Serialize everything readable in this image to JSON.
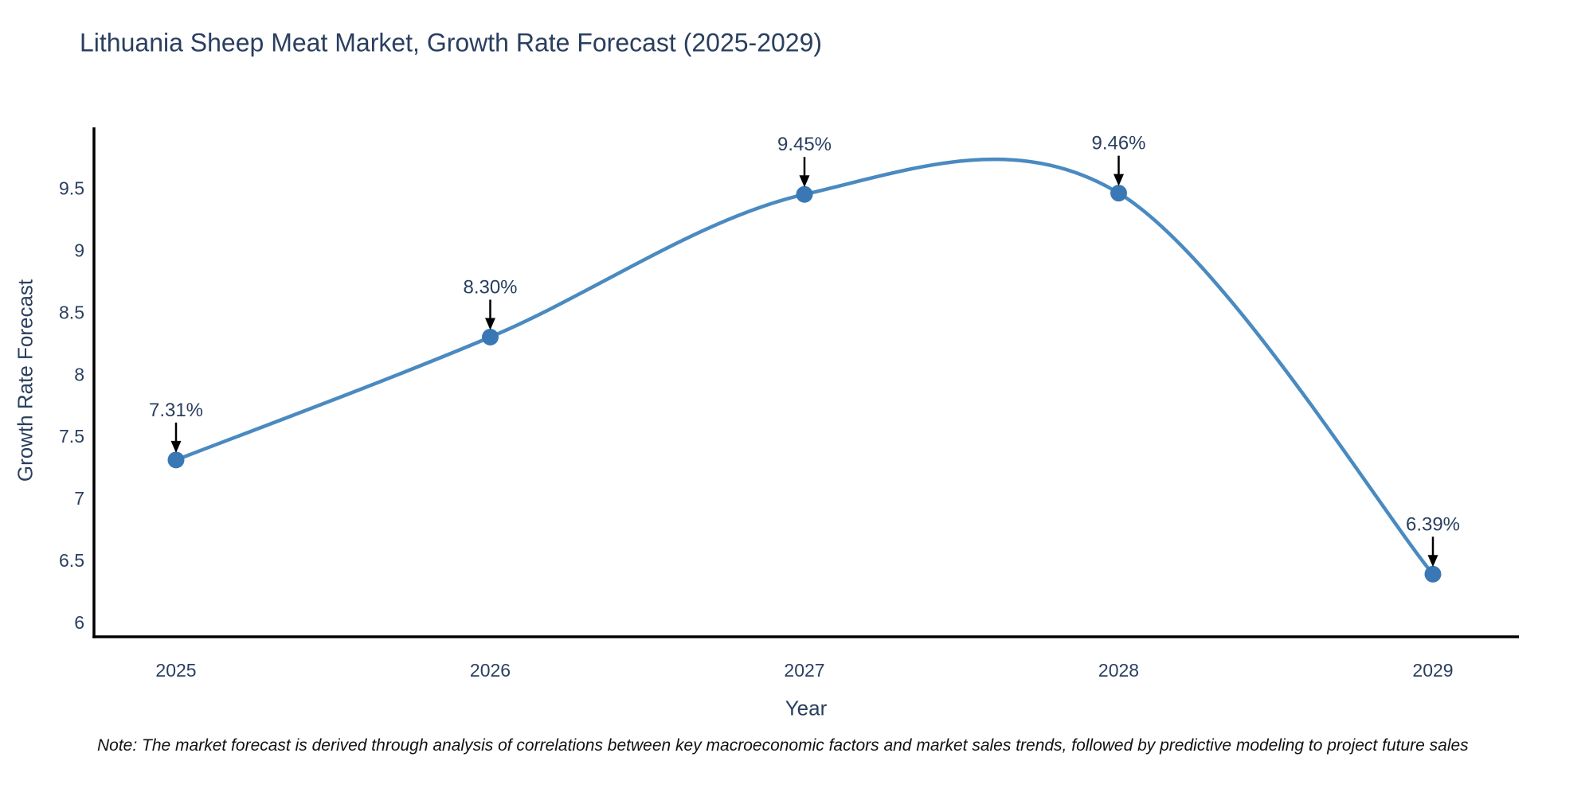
{
  "chart_data": {
    "type": "line",
    "title": "Lithuania Sheep Meat Market, Growth Rate Forecast (2025-2029)",
    "xlabel": "Year",
    "ylabel": "Growth Rate Forecast",
    "x": [
      2025,
      2026,
      2027,
      2028,
      2029
    ],
    "y": [
      7.31,
      8.3,
      9.45,
      9.46,
      6.39
    ],
    "point_labels": [
      "7.31%",
      "8.30%",
      "9.45%",
      "9.46%",
      "6.39%"
    ],
    "xticks": [
      "2025",
      "2026",
      "2027",
      "2028",
      "2029"
    ],
    "yticks": [
      "6",
      "6.5",
      "7",
      "7.5",
      "8",
      "8.5",
      "9",
      "9.5"
    ],
    "ylim": [
      5.885,
      9.99
    ],
    "line_shape": "spline",
    "grid": false,
    "legend": "none",
    "line_color": "#4a8ac0",
    "marker_color": "#3a78b5",
    "annotation_arrow_color": "#000000",
    "annotation_text_color": "#2a3f5f",
    "axis_line_color": "#000000",
    "tick_text_color": "#2a3f5f"
  },
  "note": {
    "text": "Note: The market forecast is derived through analysis of correlations between key macroeconomic factors and market sales trends, followed by predictive modeling to project future sales"
  }
}
